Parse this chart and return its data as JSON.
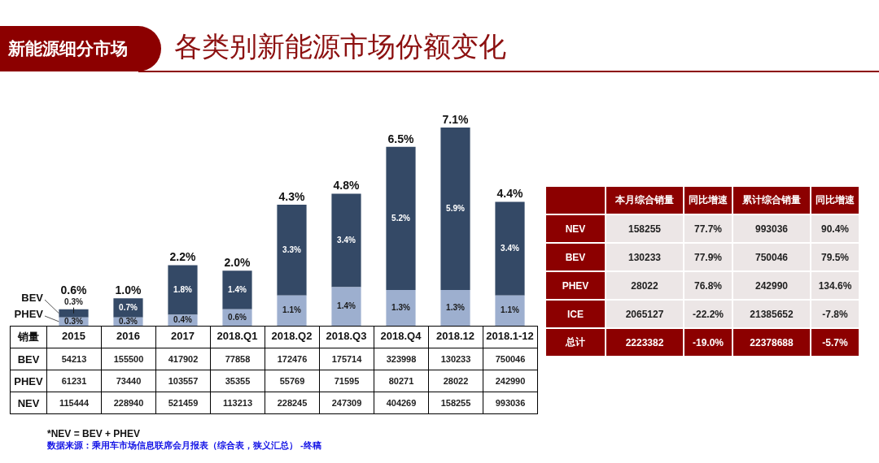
{
  "chart_data": [
    {
      "type": "bar",
      "title": "各类别新能源市场份额变化",
      "subtitle": "新能源细分市场",
      "categories": [
        "2015",
        "2016",
        "2017",
        "2018.Q1",
        "2018.Q2",
        "2018.Q3",
        "2018.Q4",
        "2018.12",
        "2018.1-12"
      ],
      "stacked": true,
      "tick_labels": "x",
      "series": [
        {
          "name": "PHEV",
          "color": "#9dafcf",
          "values": [
            0.3,
            0.3,
            0.4,
            0.6,
            1.1,
            1.4,
            1.3,
            1.3,
            1.1
          ],
          "value_labels": [
            "0.3%",
            "0.3%",
            "0.4%",
            "0.6%",
            "1.1%",
            "1.4%",
            "1.3%",
            "1.3%",
            "1.1%"
          ]
        },
        {
          "name": "BEV",
          "color": "#344966",
          "values": [
            0.3,
            0.7,
            1.8,
            1.4,
            3.3,
            3.4,
            5.2,
            5.9,
            3.4
          ],
          "value_labels": [
            "0.3%",
            "0.7%",
            "1.8%",
            "1.4%",
            "3.3%",
            "3.4%",
            "5.2%",
            "5.9%",
            "3.4%"
          ]
        }
      ],
      "totals": [
        "0.6%",
        "1.0%",
        "2.2%",
        "2.0%",
        "4.3%",
        "4.8%",
        "6.5%",
        "7.1%",
        "4.4%"
      ]
    },
    {
      "type": "heatmap",
      "title": "销量",
      "categories": [
        null,
        null,
        null,
        null,
        null,
        null,
        null,
        null,
        null
      ],
      "y_categories": [
        "BEV",
        "PHEV",
        "NEV"
      ],
      "tick_labels": "y",
      "cells": [
        [
          54213,
          155500,
          417902,
          77858,
          172476,
          175714,
          323998,
          130233,
          750046
        ],
        [
          61231,
          73440,
          103557,
          35355,
          55769,
          71595,
          80271,
          28022,
          242990
        ],
        [
          115444,
          228940,
          521459,
          113213,
          228245,
          247309,
          404269,
          158255,
          993036
        ]
      ],
      "data_labels": true,
      "color": "#ffffff",
      "annotations": [
        "*NEV = BEV + PHEV",
        "数据来源：乘用车市场信息联席会月报表（综合表，狭义汇总） -终稿"
      ]
    },
    {
      "type": "heatmap",
      "categories": [
        "本月综合销量",
        "同比增速",
        "累计综合销量",
        "同比增速"
      ],
      "y_categories": [
        "NEV",
        "BEV",
        "PHEV",
        "ICE",
        "总计"
      ],
      "cells": [
        [
          158255,
          77.7,
          993036,
          90.4
        ],
        [
          130233,
          77.9,
          750046,
          79.5
        ],
        [
          28022,
          76.8,
          242990,
          134.6
        ],
        [
          2065127,
          -22.2,
          21385652,
          -7.8
        ],
        [
          2223382,
          -19.0,
          22378688,
          -5.7
        ]
      ],
      "cell_labels": [
        [
          "158255",
          "77.7%",
          "993036",
          "90.4%"
        ],
        [
          "130233",
          "77.9%",
          "750046",
          "79.5%"
        ],
        [
          "28022",
          "76.8%",
          "242990",
          "134.6%"
        ],
        [
          "2065127",
          "-22.2%",
          "21385652",
          "-7.8%"
        ],
        [
          "2223382",
          "-19.0%",
          "22378688",
          "-5.7%"
        ]
      ],
      "colors": [
        [
          "#ece6e6",
          "#ece6e6",
          "#ece6e6",
          "#ece6e6"
        ],
        [
          "#ece6e6",
          "#ece6e6",
          "#ece6e6",
          "#ece6e6"
        ],
        [
          "#ece6e6",
          "#ece6e6",
          "#ece6e6",
          "#ece6e6"
        ],
        [
          "#ece6e6",
          "#ece6e6",
          "#ece6e6",
          "#ece6e6"
        ],
        [
          "#8c0000",
          "#8c0000",
          "#8c0000",
          "#8c0000"
        ]
      ]
    }
  ]
}
